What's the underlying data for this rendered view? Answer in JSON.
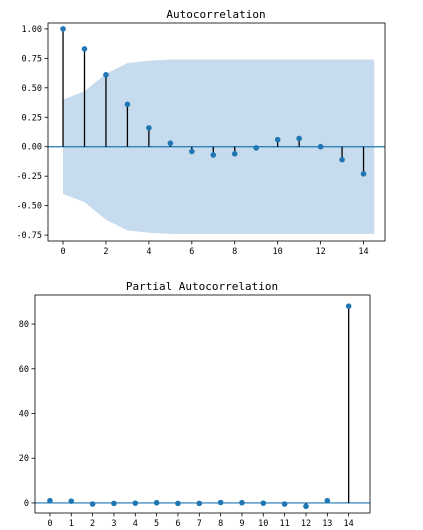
{
  "chart_data": [
    {
      "type": "stem",
      "title": "Autocorrelation",
      "x": [
        0,
        1,
        2,
        3,
        4,
        5,
        6,
        7,
        8,
        9,
        10,
        11,
        12,
        13,
        14
      ],
      "values": [
        1.0,
        0.83,
        0.61,
        0.36,
        0.16,
        0.03,
        -0.04,
        -0.07,
        -0.06,
        -0.01,
        0.06,
        0.07,
        0.0,
        -0.11,
        -0.23
      ],
      "confidence_band": {
        "x": [
          0,
          1,
          2,
          3,
          4,
          5,
          6,
          7,
          8,
          9,
          10,
          11,
          12,
          13,
          14,
          14.5
        ],
        "upper": [
          0.4,
          0.47,
          0.62,
          0.71,
          0.73,
          0.74,
          0.74,
          0.74,
          0.74,
          0.74,
          0.74,
          0.74,
          0.74,
          0.74,
          0.74,
          0.74
        ]
      },
      "xlim": [
        -0.7,
        15.0
      ],
      "ylim": [
        -0.8,
        1.05
      ],
      "xticks": [
        0,
        2,
        4,
        6,
        8,
        10,
        12,
        14
      ],
      "xtick_labels": [
        "0",
        "2",
        "4",
        "6",
        "8",
        "10",
        "12",
        "14"
      ],
      "yticks": [
        1.0,
        0.75,
        0.5,
        0.25,
        0.0,
        -0.25,
        -0.5,
        -0.75
      ],
      "ytick_labels": [
        "1.00",
        "0.75",
        "0.50",
        "0.25",
        "0.00",
        "-0.25",
        "-0.50",
        "-0.75"
      ],
      "colors": {
        "marker": "#1f77b4",
        "band": "#c6dbee",
        "zero_line": "#1f77b4",
        "stem": "#000000"
      }
    },
    {
      "type": "stem",
      "title": "Partial Autocorrelation",
      "x": [
        0,
        1,
        2,
        3,
        4,
        5,
        6,
        7,
        8,
        9,
        10,
        11,
        12,
        13,
        14
      ],
      "values": [
        1.0,
        0.8,
        -0.5,
        -0.2,
        -0.1,
        0.1,
        -0.2,
        -0.2,
        0.2,
        0.1,
        -0.1,
        -0.5,
        -1.5,
        1.0,
        88.0
      ],
      "xlim": [
        -0.7,
        15.0
      ],
      "ylim": [
        -4.5,
        93
      ],
      "xticks": [
        0,
        1,
        2,
        3,
        4,
        5,
        6,
        7,
        8,
        9,
        10,
        11,
        12,
        13,
        14
      ],
      "xtick_labels": [
        "0",
        "1",
        "2",
        "3",
        "4",
        "5",
        "6",
        "7",
        "8",
        "9",
        "10",
        "11",
        "12",
        "13",
        "14"
      ],
      "yticks": [
        0,
        20,
        40,
        60,
        80
      ],
      "ytick_labels": [
        "0",
        "20",
        "40",
        "60",
        "80"
      ],
      "colors": {
        "marker": "#1f77b4",
        "zero_line": "#1f77b4",
        "stem": "#000000"
      }
    }
  ]
}
